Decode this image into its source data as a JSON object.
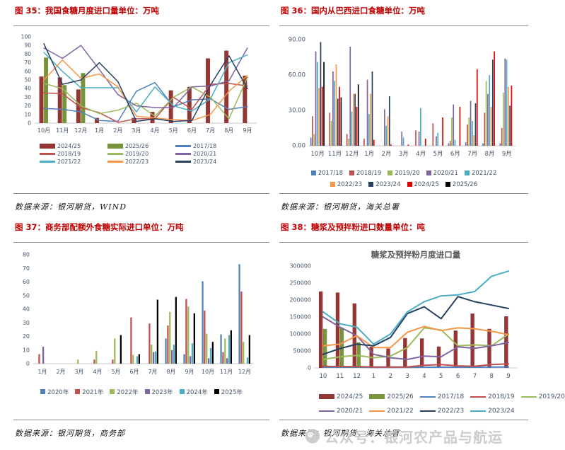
{
  "page": {
    "watermark": {
      "text": "公众号：银河农产品与航运",
      "icon": "wechat-icon",
      "color": "#c8c8c8"
    }
  },
  "chart_data": [
    {
      "id": "fig35",
      "type": "bar-line-combo",
      "title": "图 35：我国食糖月度进口量单位：万吨",
      "source": "数据来源：银河期货，WIND",
      "categories": [
        "10月",
        "11月",
        "12月",
        "1月",
        "2月",
        "3月",
        "4月",
        "5月",
        "6月",
        "7月",
        "8月",
        "9月"
      ],
      "ylim": [
        0,
        100
      ],
      "ytick_step": 10,
      "ytick_format": "int",
      "grid": false,
      "legend_position": "bottom",
      "series": [
        {
          "name": "2024/25",
          "type": "bar",
          "color": "#943634",
          "values": [
            54,
            53,
            39,
            6,
            0,
            6,
            13,
            38,
            42,
            75,
            84,
            55
          ]
        },
        {
          "name": "2025/26",
          "type": "bar",
          "color": "#77933c",
          "values": [
            76,
            44,
            58,
            0,
            0,
            0,
            0,
            0,
            0,
            0,
            0,
            0
          ]
        },
        {
          "name": "2017/18",
          "type": "line",
          "color": "#4f81bd",
          "values": [
            17,
            16,
            13,
            3,
            2,
            37,
            47,
            19,
            27,
            28,
            16,
            19
          ]
        },
        {
          "name": "2018/19",
          "type": "line",
          "color": "#c0504d",
          "values": [
            35,
            34,
            18,
            12,
            1,
            5,
            5,
            30,
            16,
            45,
            46,
            43
          ]
        },
        {
          "name": "2019/20",
          "type": "line",
          "color": "#9bbb59",
          "values": [
            46,
            40,
            20,
            11,
            15,
            23,
            8,
            30,
            42,
            30,
            5,
            53
          ]
        },
        {
          "name": "2020/21",
          "type": "line",
          "color": "#8064a2",
          "values": [
            87,
            75,
            90,
            62,
            33,
            20,
            18,
            18,
            42,
            43,
            49,
            87
          ]
        },
        {
          "name": "2021/22",
          "type": "line",
          "color": "#4bacc6",
          "values": [
            82,
            60,
            41,
            41,
            41,
            13,
            42,
            20,
            14,
            28,
            70,
            79
          ]
        },
        {
          "name": "2022/23",
          "type": "line",
          "color": "#f79646",
          "values": [
            50,
            73,
            52,
            57,
            42,
            8,
            6,
            4,
            3,
            10,
            37,
            55
          ]
        },
        {
          "name": "2023/24",
          "type": "line",
          "color": "#254061",
          "values": [
            92,
            45,
            50,
            70,
            48,
            2,
            5,
            2,
            3,
            44,
            78,
            40
          ]
        }
      ],
      "legend": {
        "layout": "grid3",
        "swatch": "auto"
      }
    },
    {
      "id": "fig36",
      "type": "bar",
      "title": "图 36：国内从巴西进口食糖单位：万吨",
      "source": "数据来源：银河期货，海关总署",
      "categories": [
        "10月",
        "11月",
        "12月",
        "1月",
        "2月",
        "3月",
        "4月",
        "5月",
        "6月",
        "7月",
        "8月",
        "9月"
      ],
      "ylim": [
        0,
        90
      ],
      "ytick_step": 30,
      "ytick_format": "dec2",
      "grid": false,
      "legend_position": "bottom",
      "series": [
        {
          "name": "2017/18",
          "type": "bar",
          "color": "#4f81bd",
          "values": [
            7,
            0,
            0,
            0,
            0,
            0,
            0,
            0,
            2,
            3,
            2,
            2
          ]
        },
        {
          "name": "2018/19",
          "type": "bar",
          "color": "#c0504d",
          "values": [
            25,
            28,
            10,
            6,
            0,
            0,
            13,
            19,
            4,
            18,
            28,
            15
          ]
        },
        {
          "name": "2019/20",
          "type": "bar",
          "color": "#9bbb59",
          "values": [
            10,
            21,
            6,
            0,
            0,
            0,
            0,
            0,
            24,
            24,
            55,
            45
          ]
        },
        {
          "name": "2020/21",
          "type": "bar",
          "color": "#8064a2",
          "values": [
            80,
            63,
            84,
            56,
            31,
            12,
            12,
            8,
            35,
            38,
            44,
            74
          ]
        },
        {
          "name": "2021/22",
          "type": "bar",
          "color": "#4bacc6",
          "values": [
            71,
            55,
            29,
            27,
            17,
            7,
            32,
            11,
            5,
            21,
            60,
            73
          ]
        },
        {
          "name": "2022/23",
          "type": "bar",
          "color": "#f79646",
          "values": [
            49,
            69,
            44,
            44,
            25,
            0,
            0,
            0,
            0,
            9,
            33,
            50
          ]
        },
        {
          "name": "2023/24",
          "type": "bar",
          "color": "#254061",
          "values": [
            88,
            40,
            44,
            63,
            42,
            0,
            0,
            0,
            0,
            36,
            73,
            34
          ]
        },
        {
          "name": "2024/25",
          "type": "bar",
          "color": "#e00000",
          "values": [
            50,
            50,
            33,
            5,
            1,
            1,
            6,
            24,
            33,
            65,
            80,
            51
          ]
        },
        {
          "name": "2025/26",
          "type": "bar",
          "color": "#000000",
          "values": [
            71,
            41,
            52,
            0,
            0,
            0,
            0,
            0,
            0,
            0,
            0,
            0
          ]
        }
      ],
      "legend": {
        "layout": "rows",
        "swatch": "square",
        "rows": [
          [
            0,
            1,
            2,
            3,
            4
          ],
          [
            5,
            6,
            7,
            8
          ]
        ]
      }
    },
    {
      "id": "fig37",
      "type": "bar",
      "title": "图 37：商务部配额外食糖实际进口单位：万吨",
      "source": "数据来源：银河期货，商务部",
      "categories": [
        "1月",
        "2月",
        "3月",
        "4月",
        "5月",
        "6月",
        "7月",
        "8月",
        "9月",
        "10月",
        "11月",
        "12月"
      ],
      "ylim": [
        0,
        80
      ],
      "ytick_step": 10,
      "ytick_format": "int",
      "grid": false,
      "legend_position": "bottom",
      "series": [
        {
          "name": "2020年",
          "type": "bar",
          "color": "#4f81bd",
          "values": [
            0,
            0,
            0,
            0,
            0,
            0,
            0,
            18.5,
            7,
            60.5,
            21.5,
            73
          ]
        },
        {
          "name": "2021年",
          "type": "bar",
          "color": "#c0504d",
          "values": [
            7,
            0,
            0,
            3,
            3,
            34,
            29.5,
            28,
            47.5,
            39,
            8.5,
            53
          ]
        },
        {
          "name": "2022年",
          "type": "bar",
          "color": "#9bbb59",
          "values": [
            0,
            0,
            3,
            9.5,
            18.5,
            6.5,
            14,
            38,
            42,
            22,
            18.5,
            16
          ]
        },
        {
          "name": "2023年",
          "type": "bar",
          "color": "#8064a2",
          "values": [
            12.5,
            0,
            0,
            0,
            0,
            0,
            8.5,
            10,
            5.5,
            4,
            4,
            0
          ]
        },
        {
          "name": "2024年",
          "type": "bar",
          "color": "#4bacc6",
          "values": [
            0,
            0,
            0,
            0,
            0,
            5.5,
            9,
            14,
            15,
            11.5,
            21,
            4.5
          ]
        },
        {
          "name": "2025年",
          "type": "bar",
          "color": "#000000",
          "values": [
            0,
            0,
            0,
            0,
            21,
            7,
            47,
            49,
            37,
            16,
            24.5,
            21
          ]
        }
      ],
      "legend": {
        "layout": "rows",
        "swatch": "square",
        "rows": [
          [
            0,
            1,
            2,
            3,
            4,
            5
          ]
        ]
      }
    },
    {
      "id": "fig38",
      "type": "bar-line-combo",
      "title": "图 38：糖浆及预拌粉进口数量单位：吨",
      "inner_title": "糖浆及预拌粉月度进口量",
      "source": "数据来源：银河期货，海关总署",
      "categories": [
        "10",
        "11",
        "12",
        "1",
        "2",
        "3",
        "4",
        "5",
        "6",
        "7",
        "8",
        "9"
      ],
      "ylim": [
        0,
        300000
      ],
      "ytick_step": 50000,
      "ytick_format": "int",
      "grid": false,
      "legend_position": "bottom",
      "series": [
        {
          "name": "2024/25",
          "type": "bar",
          "color": "#943634",
          "values": [
            225000,
            222000,
            190000,
            62000,
            57000,
            88000,
            87000,
            63000,
            110000,
            160000,
            115000,
            152000
          ]
        },
        {
          "name": "2025/26",
          "type": "bar",
          "color": "#77933c",
          "values": [
            115000,
            118000,
            75000,
            0,
            0,
            0,
            0,
            0,
            0,
            0,
            0,
            0
          ]
        },
        {
          "name": "2017/18",
          "type": "line",
          "color": "#4f81bd",
          "values": [
            2000,
            2000,
            2000,
            1500,
            1500,
            1500,
            2000,
            2000,
            2000,
            2000,
            2500,
            3000
          ]
        },
        {
          "name": "2018/19",
          "type": "line",
          "color": "#c0504d",
          "values": [
            5000,
            4000,
            4000,
            3000,
            3000,
            3000,
            8000,
            10000,
            6000,
            5000,
            10000,
            12000
          ]
        },
        {
          "name": "2019/20",
          "type": "line",
          "color": "#9bbb59",
          "values": [
            25000,
            33000,
            37000,
            30000,
            35000,
            60000,
            118000,
            112000,
            65000,
            68000,
            65000,
            100000
          ]
        },
        {
          "name": "2020/21",
          "type": "line",
          "color": "#8064a2",
          "values": [
            150000,
            120000,
            95000,
            40000,
            30000,
            25000,
            35000,
            33000,
            62000,
            58000,
            65000,
            75000
          ]
        },
        {
          "name": "2021/22",
          "type": "line",
          "color": "#f79646",
          "values": [
            65000,
            70000,
            95000,
            60000,
            60000,
            105000,
            122000,
            110000,
            118000,
            115000,
            108000,
            98000
          ]
        },
        {
          "name": "2022/23",
          "type": "line",
          "color": "#254061",
          "values": [
            40000,
            57000,
            70000,
            65000,
            90000,
            160000,
            180000,
            145000,
            210000,
            195000,
            185000,
            175000
          ]
        },
        {
          "name": "2023/24",
          "type": "line",
          "color": "#4bacc6",
          "values": [
            165000,
            130000,
            120000,
            70000,
            100000,
            165000,
            195000,
            212000,
            215000,
            225000,
            270000,
            285000
          ]
        }
      ],
      "legend": {
        "layout": "rows",
        "swatch": "auto",
        "align": "left",
        "rows": [
          [
            0,
            1,
            2,
            3,
            4
          ],
          [
            5,
            6,
            7,
            8
          ]
        ]
      }
    }
  ]
}
